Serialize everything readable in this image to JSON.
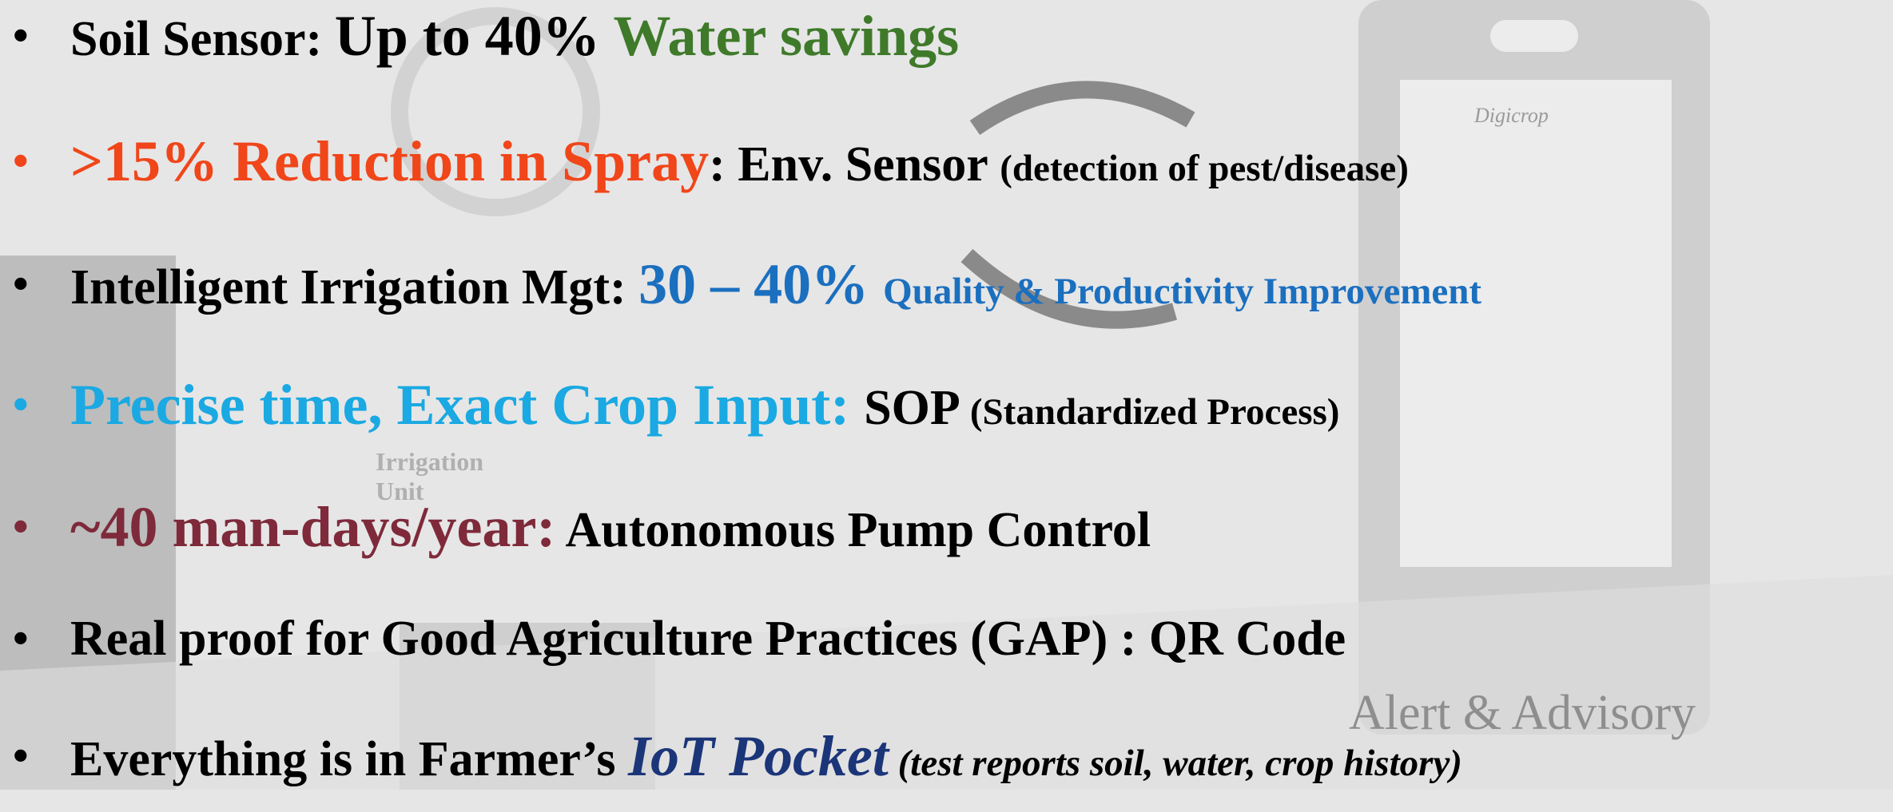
{
  "bullets": [
    {
      "segments": [
        "Soil Sensor: ",
        "Up to 40% ",
        "Water savings"
      ]
    },
    {
      "segments": [
        ">15% Reduction in Spray",
        ": Env. Sensor ",
        "(detection of pest/disease)"
      ]
    },
    {
      "segments": [
        "Intelligent Irrigation Mgt: ",
        "30 – 40% ",
        "Quality & Productivity Improvement"
      ]
    },
    {
      "segments": [
        "Precise time, Exact Crop Input: ",
        "SOP ",
        "(Standardized Process)"
      ]
    },
    {
      "segments": [
        "~40 man-days/year:",
        " Autonomous Pump Control"
      ]
    },
    {
      "segments": [
        "Real proof for Good Agriculture Practices (GAP) : QR Code"
      ]
    },
    {
      "segments": [
        "Everything is in Farmer’s ",
        "IoT Pocket",
        " (test reports soil, water, crop history)"
      ]
    }
  ],
  "background": {
    "app_name": "Digicrop",
    "unit_label": "Irrigation Unit",
    "panel_label": "Alert & Advisory"
  }
}
